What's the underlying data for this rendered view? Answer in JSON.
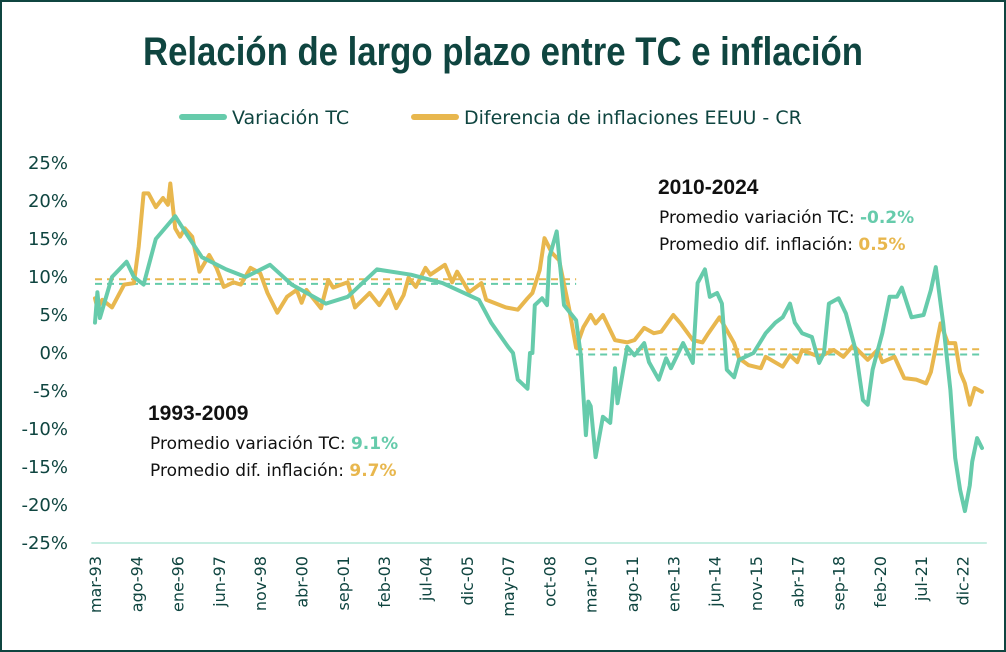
{
  "chart_data": {
    "type": "line",
    "title": "Relación de largo plazo entre TC e inflación",
    "xlabel": "",
    "ylabel": "",
    "ylim": [
      -25,
      25
    ],
    "yticks": [
      "25%",
      "20%",
      "15%",
      "10%",
      "5%",
      "0%",
      "-5%",
      "-10%",
      "-15%",
      "-20%",
      "-25%"
    ],
    "ytick_values": [
      25,
      20,
      15,
      10,
      5,
      0,
      -5,
      -10,
      -15,
      -20,
      -25
    ],
    "x_unit": "months since mar-93",
    "xticks": [
      "mar-93",
      "ago-94",
      "ene-96",
      "jun-97",
      "nov-98",
      "abr-00",
      "sep-01",
      "feb-03",
      "jul-04",
      "dic-05",
      "may-07",
      "oct-08",
      "mar-10",
      "ago-11",
      "ene-13",
      "jun-14",
      "nov-15",
      "abr-17",
      "sep-18",
      "feb-20",
      "jul-21",
      "dic-22"
    ],
    "xtick_step_months": 17,
    "xlim": [
      -1.5,
      367
    ],
    "grid": false,
    "legend_position": "top-center",
    "series": [
      {
        "name": "Variación TC",
        "color": "#66cbab",
        "points": [
          [
            0,
            4
          ],
          [
            1,
            8
          ],
          [
            2,
            4.6
          ],
          [
            7,
            10
          ],
          [
            13,
            12
          ],
          [
            16,
            10
          ],
          [
            20,
            9
          ],
          [
            25,
            15
          ],
          [
            33,
            18
          ],
          [
            38,
            15.5
          ],
          [
            44,
            12.6
          ],
          [
            54,
            11
          ],
          [
            62,
            10
          ],
          [
            72,
            11.6
          ],
          [
            81,
            9
          ],
          [
            95,
            6.5
          ],
          [
            104,
            7.4
          ],
          [
            116,
            11
          ],
          [
            130,
            10.3
          ],
          [
            143,
            9.2
          ],
          [
            158,
            7
          ],
          [
            163,
            4
          ],
          [
            170,
            0.8
          ],
          [
            172,
            0
          ],
          [
            174,
            -3.5
          ],
          [
            178,
            -4.7
          ],
          [
            179,
            0
          ],
          [
            180,
            0
          ],
          [
            181,
            6.3
          ],
          [
            184,
            7.2
          ],
          [
            186,
            6.3
          ],
          [
            187,
            12.6
          ],
          [
            190,
            16
          ],
          [
            193,
            6.3
          ],
          [
            198,
            4.3
          ],
          [
            200,
            -0.5
          ],
          [
            202,
            -10.8
          ],
          [
            203,
            -6.4
          ],
          [
            204,
            -7
          ],
          [
            206,
            -13.7
          ],
          [
            209,
            -8.4
          ],
          [
            212,
            -9.2
          ],
          [
            214,
            -2
          ],
          [
            215,
            -6.6
          ],
          [
            219,
            0.8
          ],
          [
            222,
            -0.3
          ],
          [
            226,
            1.3
          ],
          [
            228,
            -1.2
          ],
          [
            232,
            -3.5
          ],
          [
            235,
            -0.7
          ],
          [
            237,
            -2
          ],
          [
            242,
            1.3
          ],
          [
            246,
            -1.3
          ],
          [
            248,
            9.2
          ],
          [
            251,
            11
          ],
          [
            253,
            7.4
          ],
          [
            256,
            7.9
          ],
          [
            258,
            6.5
          ],
          [
            260,
            -2.2
          ],
          [
            263,
            -3.2
          ],
          [
            265,
            -0.9
          ],
          [
            271,
            0
          ],
          [
            276,
            2.6
          ],
          [
            280,
            4
          ],
          [
            283,
            4.7
          ],
          [
            286,
            6.5
          ],
          [
            288,
            4
          ],
          [
            291,
            2.6
          ],
          [
            295,
            2.1
          ],
          [
            298,
            -1.3
          ],
          [
            300,
            0
          ],
          [
            302,
            6.5
          ],
          [
            306,
            7.2
          ],
          [
            309,
            5.2
          ],
          [
            313,
            0.4
          ],
          [
            316,
            -6.2
          ],
          [
            318,
            -6.8
          ],
          [
            320,
            -2.2
          ],
          [
            324,
            2.6
          ],
          [
            327,
            7.4
          ],
          [
            330,
            7.4
          ],
          [
            332,
            8.6
          ],
          [
            336,
            4.7
          ],
          [
            341,
            5
          ],
          [
            344,
            8.3
          ],
          [
            346,
            11.3
          ],
          [
            349,
            4
          ],
          [
            352,
            -4.9
          ],
          [
            354,
            -13.8
          ],
          [
            356,
            -18
          ],
          [
            358,
            -20.8
          ],
          [
            360,
            -17.4
          ],
          [
            361,
            -14.3
          ],
          [
            363,
            -11.2
          ],
          [
            365,
            -12.5
          ]
        ]
      },
      {
        "name": "Diferencia de inflaciones EEUU - CR",
        "color": "#e8b74e",
        "points": [
          [
            0,
            7.2
          ],
          [
            1,
            5.9
          ],
          [
            3,
            7
          ],
          [
            7,
            6
          ],
          [
            12,
            9
          ],
          [
            16,
            9.2
          ],
          [
            18,
            14
          ],
          [
            20,
            21
          ],
          [
            22,
            21
          ],
          [
            25,
            19.2
          ],
          [
            28,
            20.4
          ],
          [
            30,
            19.5
          ],
          [
            31,
            22.3
          ],
          [
            33,
            16.4
          ],
          [
            35,
            15.3
          ],
          [
            37,
            16.4
          ],
          [
            40,
            15.3
          ],
          [
            43,
            10.7
          ],
          [
            47,
            12.9
          ],
          [
            50,
            11.2
          ],
          [
            53,
            8.7
          ],
          [
            57,
            9.3
          ],
          [
            60,
            9
          ],
          [
            64,
            11.2
          ],
          [
            68,
            10.5
          ],
          [
            71,
            7.9
          ],
          [
            75,
            5.3
          ],
          [
            79,
            7.4
          ],
          [
            83,
            8.3
          ],
          [
            85,
            6.6
          ],
          [
            87,
            8.3
          ],
          [
            93,
            5.9
          ],
          [
            96,
            9.6
          ],
          [
            98,
            8.6
          ],
          [
            104,
            9.3
          ],
          [
            107,
            6
          ],
          [
            113,
            7.9
          ],
          [
            117,
            6.3
          ],
          [
            121,
            8.3
          ],
          [
            124,
            5.9
          ],
          [
            127,
            7.6
          ],
          [
            129,
            9.9
          ],
          [
            132,
            8.7
          ],
          [
            136,
            11.2
          ],
          [
            138,
            10.3
          ],
          [
            144,
            11.6
          ],
          [
            147,
            9.3
          ],
          [
            149,
            10.7
          ],
          [
            154,
            8
          ],
          [
            159,
            9.2
          ],
          [
            161,
            7
          ],
          [
            169,
            6
          ],
          [
            174,
            5.7
          ],
          [
            178,
            7.2
          ],
          [
            180,
            7.9
          ],
          [
            183,
            10.9
          ],
          [
            185,
            15.1
          ],
          [
            188,
            13.2
          ],
          [
            191,
            12.2
          ],
          [
            195,
            6
          ],
          [
            198,
            0.7
          ],
          [
            201,
            3.4
          ],
          [
            204,
            5
          ],
          [
            206,
            3.9
          ],
          [
            209,
            5
          ],
          [
            214,
            1.7
          ],
          [
            219,
            1.4
          ],
          [
            222,
            1.7
          ],
          [
            226,
            3.3
          ],
          [
            230,
            2.6
          ],
          [
            233,
            2.8
          ],
          [
            238,
            5
          ],
          [
            241,
            3.9
          ],
          [
            246,
            1.7
          ],
          [
            250,
            1.4
          ],
          [
            252,
            2.4
          ],
          [
            257,
            4.7
          ],
          [
            263,
            1.3
          ],
          [
            265,
            -0.7
          ],
          [
            269,
            -1.6
          ],
          [
            274,
            -2
          ],
          [
            276,
            -0.5
          ],
          [
            283,
            -1.8
          ],
          [
            286,
            -0.3
          ],
          [
            289,
            -1.2
          ],
          [
            291,
            0.4
          ],
          [
            298,
            -0.5
          ],
          [
            304,
            0.4
          ],
          [
            308,
            -0.5
          ],
          [
            312,
            1
          ],
          [
            318,
            -0.9
          ],
          [
            322,
            0.4
          ],
          [
            324,
            -1.2
          ],
          [
            329,
            -0.5
          ],
          [
            333,
            -3.3
          ],
          [
            338,
            -3.5
          ],
          [
            342,
            -4
          ],
          [
            344,
            -2.5
          ],
          [
            348,
            3.9
          ],
          [
            351,
            1.3
          ],
          [
            354,
            1.3
          ],
          [
            356,
            -2.5
          ],
          [
            358,
            -4
          ],
          [
            360,
            -6.8
          ],
          [
            362,
            -4.6
          ],
          [
            365,
            -5.1
          ]
        ]
      }
    ],
    "averages": [
      {
        "period": "1993-2009",
        "from": 0,
        "to": 198,
        "tc": 9.1,
        "inflation": 9.7
      },
      {
        "period": "2010-2024",
        "from": 198,
        "to": 365,
        "tc": -0.2,
        "inflation": 0.5
      }
    ],
    "annotations": [
      {
        "heading": "1993-2009",
        "tc_label": "Promedio variación TC:",
        "tc_value": "9.1%",
        "inf_label": "Promedio dif. inflación:",
        "inf_value": "9.7%"
      },
      {
        "heading": "2010-2024",
        "tc_label": "Promedio variación TC:",
        "tc_value": "-0.2%",
        "inf_label": "Promedio dif. inflación:",
        "inf_value": "0.5%"
      }
    ]
  }
}
